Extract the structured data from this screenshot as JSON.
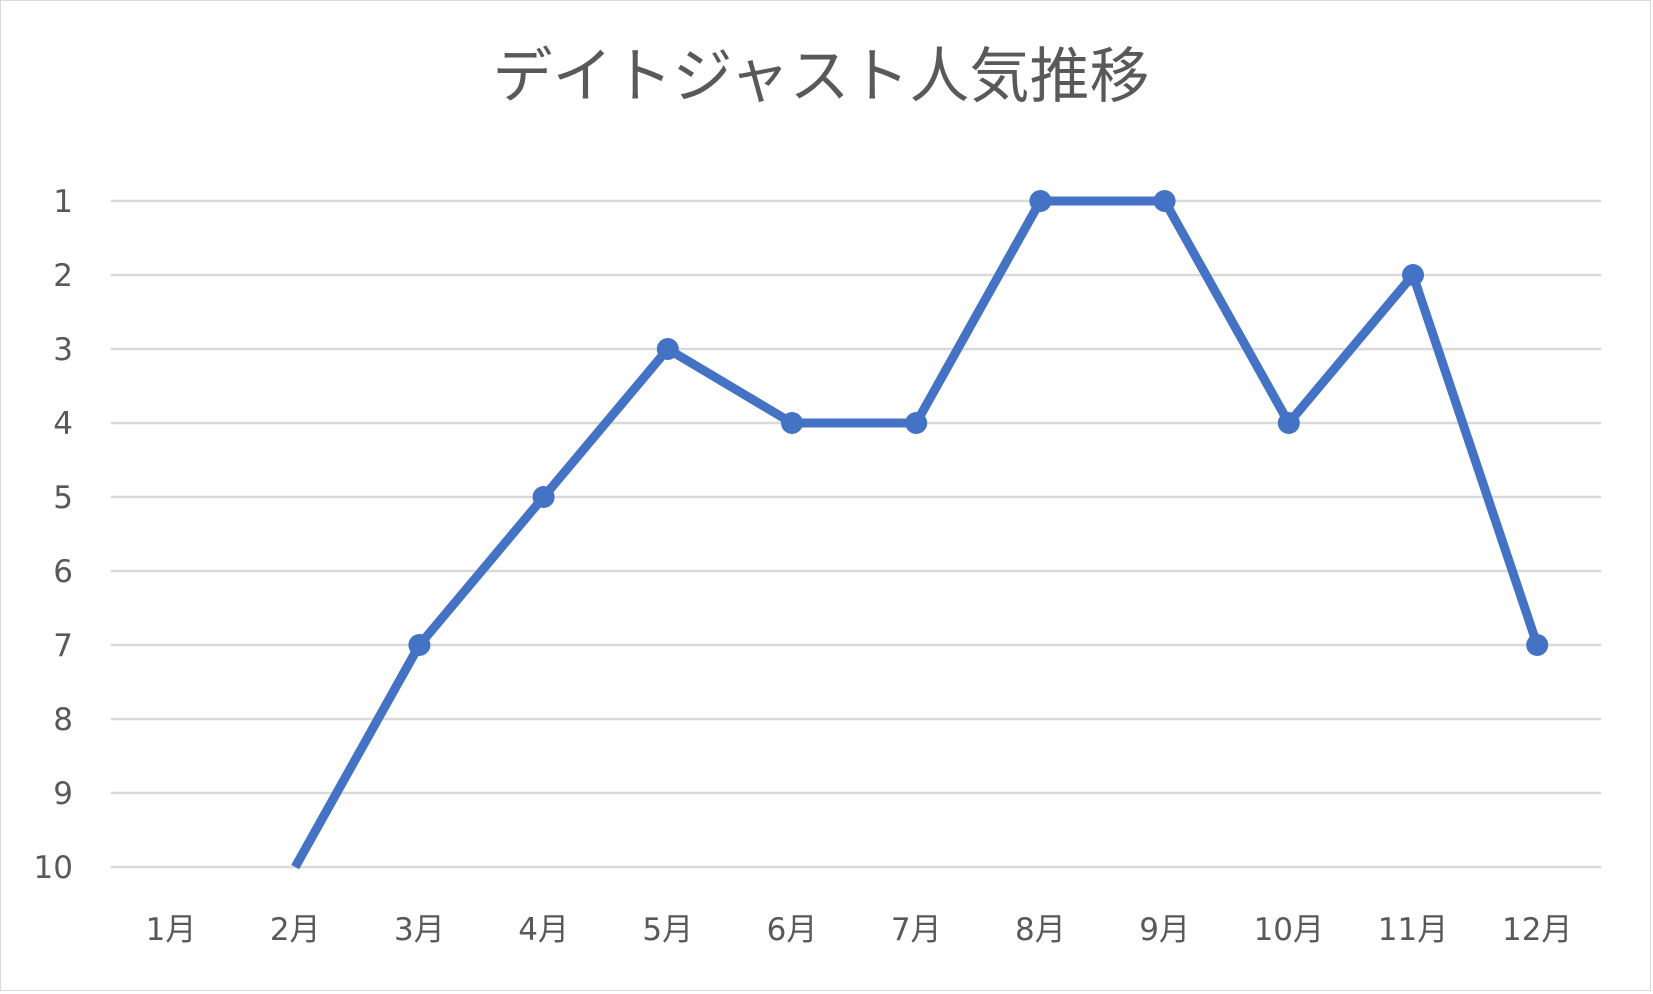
{
  "chart_data": {
    "type": "line",
    "title": "デイトジャスト人気推移",
    "xlabel": "",
    "ylabel": "",
    "categories": [
      "1月",
      "2月",
      "3月",
      "4月",
      "5月",
      "6月",
      "7月",
      "8月",
      "9月",
      "10月",
      "11月",
      "12月"
    ],
    "series": [
      {
        "values": [
          null,
          10,
          7,
          5,
          3,
          4,
          4,
          1,
          1,
          4,
          2,
          7
        ],
        "color": "#4472c4"
      }
    ],
    "y_ticks": [
      "1",
      "2",
      "3",
      "4",
      "5",
      "6",
      "7",
      "8",
      "9",
      "10"
    ],
    "ylim": [
      1,
      10
    ],
    "y_reversed": true,
    "grid": true,
    "legend": "none",
    "colors": {
      "series": "#4472c4",
      "grid": "#d9d9d9",
      "text": "#595959",
      "border": "#d9d9d9"
    }
  }
}
